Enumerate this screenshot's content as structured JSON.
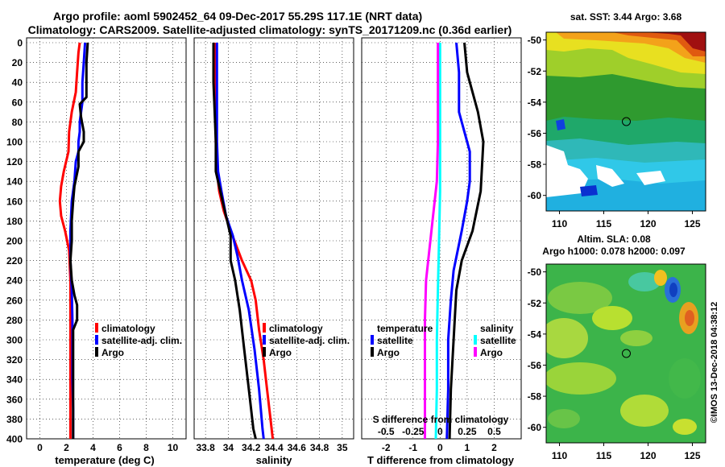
{
  "title_line1": "Argo profile: aoml 5902452_64 09-Dec-2017 55.29S 117.1E (NRT data)",
  "title_line2": "Climatology: CARS2009. Satellite-adjusted climatology: synTS_20171209.nc (0.36d earlier)",
  "credit": "©IMOS 13-Dec-2018 04:38:12",
  "colors": {
    "red": "#ff0000",
    "blue": "#0000ff",
    "black": "#000000",
    "cyan": "#00ffff",
    "magenta": "#ff00ff"
  },
  "chart_data": [
    {
      "type": "line",
      "id": "temperature",
      "xlabel": "temperature (deg C)",
      "ylabel": "",
      "xlim": [
        -1,
        11
      ],
      "ylim": [
        0,
        400
      ],
      "xticks": [
        0,
        2,
        4,
        6,
        8,
        10
      ],
      "xtick_labels": [
        "0",
        "2",
        "4",
        "6",
        "8",
        "10"
      ],
      "yticks": [
        0,
        20,
        40,
        60,
        80,
        100,
        120,
        140,
        160,
        180,
        200,
        220,
        240,
        260,
        280,
        300,
        320,
        340,
        360,
        380,
        400
      ],
      "grid": true,
      "legend": [
        "climatology",
        "satellite-adj. clim.",
        "Argo"
      ],
      "series": [
        {
          "name": "climatology",
          "color": "#ff0000",
          "points": [
            [
              3.0,
              0
            ],
            [
              2.9,
              10
            ],
            [
              2.8,
              30
            ],
            [
              2.7,
              50
            ],
            [
              2.4,
              70
            ],
            [
              2.2,
              90
            ],
            [
              2.15,
              110
            ],
            [
              1.8,
              130
            ],
            [
              1.6,
              145
            ],
            [
              1.5,
              160
            ],
            [
              1.6,
              175
            ],
            [
              1.9,
              190
            ],
            [
              2.2,
              210
            ],
            [
              2.3,
              240
            ],
            [
              2.3,
              270
            ],
            [
              2.3,
              300
            ],
            [
              2.3,
              340
            ],
            [
              2.3,
              370
            ],
            [
              2.3,
              400
            ]
          ]
        },
        {
          "name": "satellite-adj. clim.",
          "color": "#0000ff",
          "points": [
            [
              3.4,
              0
            ],
            [
              3.3,
              20
            ],
            [
              3.2,
              40
            ],
            [
              3.2,
              60
            ],
            [
              3.0,
              80
            ],
            [
              3.0,
              90
            ],
            [
              2.9,
              100
            ],
            [
              2.9,
              110
            ],
            [
              2.7,
              120
            ],
            [
              2.6,
              140
            ],
            [
              2.4,
              160
            ],
            [
              2.3,
              190
            ],
            [
              2.3,
              220
            ],
            [
              2.4,
              250
            ],
            [
              2.45,
              280
            ],
            [
              2.45,
              300
            ],
            [
              2.45,
              340
            ],
            [
              2.5,
              370
            ],
            [
              2.5,
              400
            ]
          ]
        },
        {
          "name": "Argo",
          "color": "#000000",
          "points": [
            [
              3.6,
              0
            ],
            [
              3.5,
              20
            ],
            [
              3.5,
              40
            ],
            [
              3.5,
              55
            ],
            [
              3.0,
              62
            ],
            [
              3.1,
              75
            ],
            [
              3.3,
              90
            ],
            [
              3.3,
              100
            ],
            [
              2.9,
              110
            ],
            [
              2.9,
              125
            ],
            [
              2.6,
              145
            ],
            [
              2.5,
              160
            ],
            [
              2.4,
              180
            ],
            [
              2.4,
              200
            ],
            [
              2.3,
              220
            ],
            [
              2.4,
              240
            ],
            [
              2.6,
              255
            ],
            [
              2.8,
              265
            ],
            [
              2.8,
              280
            ],
            [
              2.5,
              290
            ],
            [
              2.5,
              320
            ],
            [
              2.5,
              360
            ],
            [
              2.5,
              400
            ]
          ]
        }
      ]
    },
    {
      "type": "line",
      "id": "salinity",
      "xlabel": "salinity",
      "xlim": [
        33.7,
        35.1
      ],
      "ylim": [
        0,
        400
      ],
      "xticks": [
        33.8,
        34,
        34.2,
        34.4,
        34.6,
        34.8,
        35
      ],
      "xtick_labels": [
        "33.8",
        "34",
        "34.2",
        "34.4",
        "34.6",
        "34.8",
        "35"
      ],
      "grid": true,
      "legend": [
        "climatology",
        "satellite-adj. clim.",
        "Argo"
      ],
      "series": [
        {
          "name": "climatology",
          "color": "#ff0000",
          "points": [
            [
              33.89,
              0
            ],
            [
              33.89,
              50
            ],
            [
              33.89,
              100
            ],
            [
              33.9,
              130
            ],
            [
              33.92,
              150
            ],
            [
              33.96,
              170
            ],
            [
              34.02,
              190
            ],
            [
              34.12,
              220
            ],
            [
              34.2,
              240
            ],
            [
              34.24,
              260
            ],
            [
              34.27,
              290
            ],
            [
              34.31,
              320
            ],
            [
              34.34,
              350
            ],
            [
              34.37,
              380
            ],
            [
              34.39,
              400
            ]
          ]
        },
        {
          "name": "satellite-adj. clim.",
          "color": "#0000ff",
          "points": [
            [
              33.9,
              0
            ],
            [
              33.9,
              50
            ],
            [
              33.9,
              100
            ],
            [
              33.91,
              130
            ],
            [
              33.94,
              150
            ],
            [
              33.98,
              175
            ],
            [
              34.04,
              195
            ],
            [
              34.08,
              215
            ],
            [
              34.12,
              240
            ],
            [
              34.18,
              270
            ],
            [
              34.23,
              310
            ],
            [
              34.27,
              350
            ],
            [
              34.3,
              390
            ],
            [
              34.31,
              400
            ]
          ]
        },
        {
          "name": "Argo",
          "color": "#000000",
          "points": [
            [
              33.87,
              0
            ],
            [
              33.87,
              40
            ],
            [
              33.88,
              70
            ],
            [
              33.89,
              100
            ],
            [
              33.89,
              130
            ],
            [
              33.93,
              150
            ],
            [
              33.98,
              175
            ],
            [
              34.02,
              195
            ],
            [
              34.02,
              220
            ],
            [
              34.06,
              240
            ],
            [
              34.1,
              270
            ],
            [
              34.14,
              310
            ],
            [
              34.18,
              350
            ],
            [
              34.22,
              390
            ],
            [
              34.24,
              400
            ]
          ]
        }
      ]
    },
    {
      "type": "line",
      "id": "difference",
      "xlabel": "T difference from climatology",
      "x2label": "S difference from climatology",
      "xlim": [
        -2.9,
        3.0
      ],
      "x2lim": [
        -0.725,
        0.75
      ],
      "ylim": [
        0,
        400
      ],
      "xticks": [
        -2,
        -1,
        0,
        1,
        2
      ],
      "xtick_labels": [
        "-2",
        "-1",
        "0",
        "1",
        "2"
      ],
      "x2ticks": [
        -0.5,
        -0.25,
        0,
        0.25,
        0.5
      ],
      "x2tick_labels": [
        "-0.5",
        "-0.25",
        "0",
        "0.25",
        "0.5"
      ],
      "grid": true,
      "legend_temperature": {
        "title": "temperature",
        "entries": [
          "satellite",
          "Argo"
        ]
      },
      "legend_salinity": {
        "title": "salinity",
        "entries": [
          "satellite",
          "Argo"
        ]
      },
      "series": [
        {
          "name": "temperature satellite",
          "color": "#0000ff",
          "axis": "T",
          "points": [
            [
              0.6,
              0
            ],
            [
              0.7,
              30
            ],
            [
              0.7,
              70
            ],
            [
              1.1,
              110
            ],
            [
              1.1,
              140
            ],
            [
              1.0,
              160
            ],
            [
              0.8,
              190
            ],
            [
              0.5,
              230
            ],
            [
              0.4,
              260
            ],
            [
              0.3,
              300
            ],
            [
              0.3,
              350
            ],
            [
              0.25,
              400
            ]
          ]
        },
        {
          "name": "temperature Argo",
          "color": "#000000",
          "axis": "T",
          "points": [
            [
              0.9,
              0
            ],
            [
              1.0,
              30
            ],
            [
              1.4,
              70
            ],
            [
              1.6,
              100
            ],
            [
              1.5,
              150
            ],
            [
              1.2,
              190
            ],
            [
              0.8,
              220
            ],
            [
              0.6,
              250
            ],
            [
              0.5,
              300
            ],
            [
              0.4,
              350
            ],
            [
              0.35,
              400
            ]
          ]
        },
        {
          "name": "salinity satellite",
          "color": "#00ffff",
          "axis": "S",
          "points": [
            [
              0.0,
              0
            ],
            [
              0.0,
              100
            ],
            [
              0.0,
              150
            ],
            [
              -0.01,
              200
            ],
            [
              -0.02,
              250
            ],
            [
              -0.03,
              300
            ],
            [
              -0.03,
              350
            ],
            [
              -0.04,
              400
            ]
          ]
        },
        {
          "name": "salinity Argo",
          "color": "#ff00ff",
          "axis": "S",
          "points": [
            [
              -0.02,
              0
            ],
            [
              -0.02,
              100
            ],
            [
              -0.03,
              140
            ],
            [
              -0.07,
              180
            ],
            [
              -0.1,
              210
            ],
            [
              -0.13,
              240
            ],
            [
              -0.14,
              280
            ],
            [
              -0.14,
              330
            ],
            [
              -0.14,
              400
            ]
          ]
        }
      ]
    },
    {
      "type": "heatmap",
      "id": "sst_map",
      "title": "sat. SST: 3.44 Argo: 3.68",
      "xlim": [
        108.5,
        126.5
      ],
      "ylim": [
        -61,
        -49.5
      ],
      "xticks": [
        110,
        115,
        120,
        125
      ],
      "yticks": [
        -50,
        -52,
        -54,
        -56,
        -58,
        -60
      ],
      "profile_location": [
        117.1,
        -55.29
      ]
    },
    {
      "type": "heatmap",
      "id": "sla_map",
      "title_line1": "Altim. SLA: 0.08",
      "title_line2": "Argo h1000: 0.078 h2000: 0.097",
      "xlim": [
        108.5,
        126.5
      ],
      "ylim": [
        -61,
        -49.5
      ],
      "xticks": [
        110,
        115,
        120,
        125
      ],
      "yticks": [
        -50,
        -52,
        -54,
        -56,
        -58,
        -60
      ],
      "profile_location": [
        117.1,
        -55.29
      ]
    }
  ]
}
